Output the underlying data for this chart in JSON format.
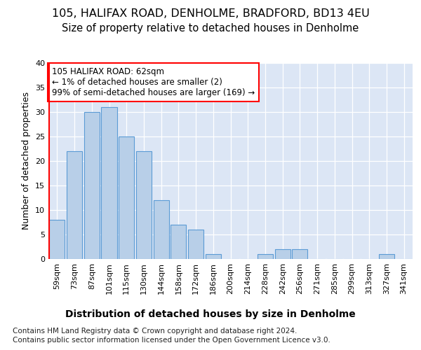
{
  "title": "105, HALIFAX ROAD, DENHOLME, BRADFORD, BD13 4EU",
  "subtitle": "Size of property relative to detached houses in Denholme",
  "xlabel": "Distribution of detached houses by size in Denholme",
  "ylabel": "Number of detached properties",
  "categories": [
    "59sqm",
    "73sqm",
    "87sqm",
    "101sqm",
    "115sqm",
    "130sqm",
    "144sqm",
    "158sqm",
    "172sqm",
    "186sqm",
    "200sqm",
    "214sqm",
    "228sqm",
    "242sqm",
    "256sqm",
    "271sqm",
    "285sqm",
    "299sqm",
    "313sqm",
    "327sqm",
    "341sqm"
  ],
  "values": [
    8,
    22,
    30,
    31,
    25,
    22,
    12,
    7,
    6,
    1,
    0,
    0,
    1,
    2,
    2,
    0,
    0,
    0,
    0,
    1,
    0
  ],
  "bar_color": "#b8cfe8",
  "bar_edge_color": "#5b9bd5",
  "annotation_text": "105 HALIFAX ROAD: 62sqm\n← 1% of detached houses are smaller (2)\n99% of semi-detached houses are larger (169) →",
  "footer_line1": "Contains HM Land Registry data © Crown copyright and database right 2024.",
  "footer_line2": "Contains public sector information licensed under the Open Government Licence v3.0.",
  "ylim": [
    0,
    40
  ],
  "yticks": [
    0,
    5,
    10,
    15,
    20,
    25,
    30,
    35,
    40
  ],
  "title_fontsize": 11.5,
  "subtitle_fontsize": 10.5,
  "ylabel_fontsize": 9,
  "xlabel_fontsize": 10,
  "tick_fontsize": 8,
  "annotation_fontsize": 8.5,
  "footer_fontsize": 7.5,
  "background_color": "#ffffff",
  "plot_bg_color": "#dce6f5"
}
